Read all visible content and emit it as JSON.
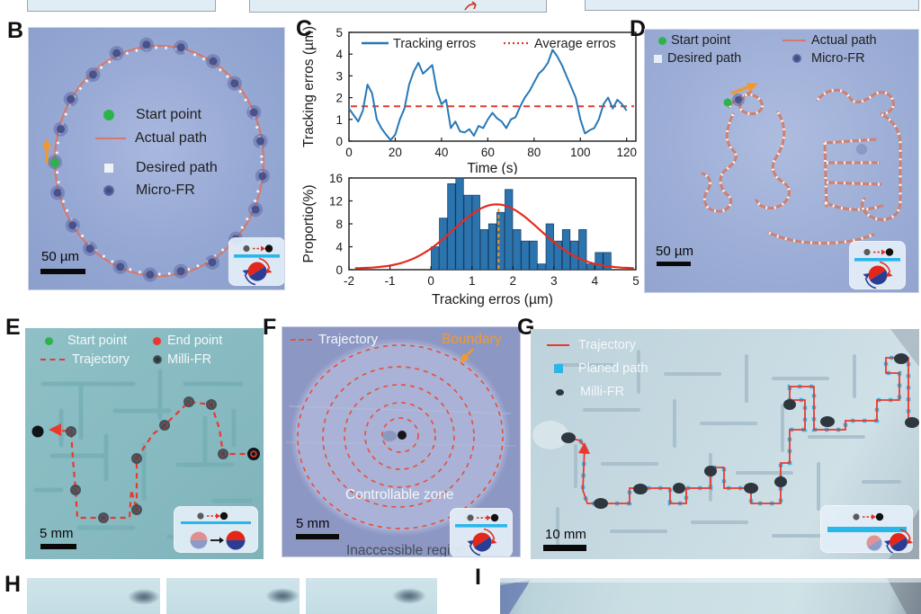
{
  "figure": {
    "panel_labels": {
      "B": "B",
      "C": "C",
      "D": "D",
      "E": "E",
      "F": "F",
      "G": "G",
      "H": "H",
      "I": "I"
    }
  },
  "panelB": {
    "legend": [
      {
        "label": "Start point"
      },
      {
        "label": "Actual path"
      },
      {
        "label": "Desired path"
      },
      {
        "label": "Micro-FR"
      }
    ],
    "scale_bar": "50 µm"
  },
  "panelD": {
    "legend_col1": [
      {
        "label": "Start point"
      },
      {
        "label": "Desired path"
      }
    ],
    "legend_col2": [
      {
        "label": "Actual path"
      },
      {
        "label": "Micro-FR"
      }
    ],
    "scale_bar": "50 µm"
  },
  "panelE": {
    "legend": [
      {
        "label": "Start point"
      },
      {
        "label": "End point"
      },
      {
        "label": "Trajectory"
      },
      {
        "label": "Milli-FR"
      }
    ],
    "scale_bar": "5 mm"
  },
  "panelF": {
    "trajectory_label": "Trajectory",
    "boundary_label": "Boundary",
    "controllable_label": "Controllable zone",
    "inaccessible_label": "Inaccessible region",
    "scale_bar": "5 mm"
  },
  "panelG": {
    "legend": [
      {
        "label": "Trajectory"
      },
      {
        "label": "Planed path"
      },
      {
        "label": "Milli-FR"
      }
    ],
    "scale_bar": "10 mm"
  },
  "chart_data": [
    {
      "type": "line",
      "title": "",
      "xlabel": "Time (s)",
      "ylabel": "Tracking erros (µm)",
      "xlim": [
        0,
        124
      ],
      "ylim": [
        0,
        5
      ],
      "xticks": [
        0,
        20,
        40,
        60,
        80,
        100,
        120
      ],
      "yticks": [
        0,
        1,
        2,
        3,
        4,
        5
      ],
      "legend": [
        "Tracking erros",
        "Average erros"
      ],
      "legend_position": "top",
      "grid": false,
      "average_value": 1.6,
      "x_step": 2,
      "y": [
        1.5,
        1.2,
        0.9,
        1.4,
        2.6,
        2.2,
        1.0,
        0.6,
        0.3,
        0.05,
        0.3,
        1.0,
        1.5,
        2.6,
        3.2,
        3.6,
        3.1,
        3.3,
        3.5,
        2.3,
        1.7,
        1.9,
        0.6,
        0.9,
        0.45,
        0.4,
        0.55,
        0.25,
        0.7,
        0.6,
        1.0,
        1.3,
        1.05,
        0.9,
        0.6,
        1.0,
        1.1,
        1.6,
        2.0,
        2.3,
        2.7,
        3.1,
        3.3,
        3.6,
        4.2,
        3.9,
        3.5,
        3.0,
        2.5,
        2.0,
        1.0,
        0.35,
        0.5,
        0.6,
        1.0,
        1.7,
        2.0,
        1.5,
        1.9,
        1.7,
        1.4
      ]
    },
    {
      "type": "bar",
      "title": "",
      "xlabel": "Tracking erros (µm)",
      "ylabel": "Proportio(%)",
      "xlim": [
        -2,
        5
      ],
      "ylim": [
        0,
        16
      ],
      "xticks": [
        -2,
        -1,
        0,
        1,
        2,
        3,
        4,
        5
      ],
      "yticks": [
        0,
        4,
        8,
        12,
        16
      ],
      "grid": false,
      "bin_start": 0,
      "bin_width": 0.2,
      "values": [
        4,
        9,
        15,
        16,
        13,
        13,
        7,
        8,
        10,
        14,
        7,
        5,
        5,
        1,
        8,
        5,
        7,
        5,
        7,
        1,
        3,
        3
      ],
      "fit": {
        "type": "gaussian",
        "mean": 1.6,
        "sigma": 1.05,
        "amp": 11.2
      },
      "mean_line_x": 1.65
    }
  ],
  "colors": {
    "track_blue": "#2878b5",
    "avg_red": "#e03a2a",
    "bar_blue": "#2b74ae",
    "gauss_red": "#e62b1e",
    "mean_orange": "#f2992e",
    "start_green": "#2eb34a",
    "actual_salmon": "#d4796b",
    "micro_fr_blue": "#4d5590",
    "planned_cyan": "#2eb5e8",
    "boundary_orange": "#f2992e"
  }
}
